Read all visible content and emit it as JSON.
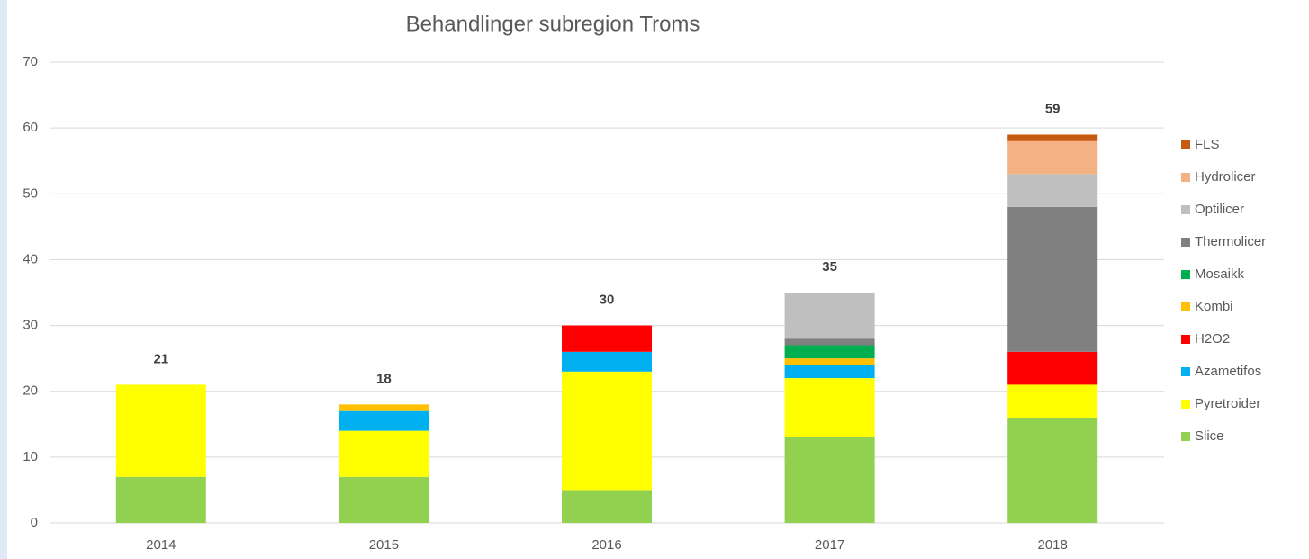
{
  "chart_data": {
    "type": "stacked_bar",
    "title": "Behandlinger subregion Troms",
    "categories": [
      "2014",
      "2015",
      "2016",
      "2017",
      "2018"
    ],
    "series": [
      {
        "name": "Slice",
        "color": "#92d050",
        "values": [
          7,
          7,
          5,
          13,
          16
        ]
      },
      {
        "name": "Pyretroider",
        "color": "#ffff00",
        "values": [
          14,
          7,
          18,
          9,
          5
        ]
      },
      {
        "name": "Azametifos",
        "color": "#00b0f0",
        "values": [
          0,
          3,
          3,
          2,
          0
        ]
      },
      {
        "name": "H2O2",
        "color": "#ff0000",
        "values": [
          0,
          0,
          4,
          0,
          5
        ]
      },
      {
        "name": "Kombi",
        "color": "#ffc000",
        "values": [
          0,
          1,
          0,
          1,
          0
        ]
      },
      {
        "name": "Mosaikk",
        "color": "#00b050",
        "values": [
          0,
          0,
          0,
          2,
          0
        ]
      },
      {
        "name": "Thermolicer",
        "color": "#808080",
        "values": [
          0,
          0,
          0,
          1,
          22
        ]
      },
      {
        "name": "Optilicer",
        "color": "#bfbfbf",
        "values": [
          0,
          0,
          0,
          7,
          5
        ]
      },
      {
        "name": "Hydrolicer",
        "color": "#f4b183",
        "values": [
          0,
          0,
          0,
          0,
          5
        ]
      },
      {
        "name": "FLS",
        "color": "#c55a11",
        "values": [
          0,
          0,
          0,
          0,
          1
        ]
      }
    ],
    "totals": [
      21,
      18,
      30,
      35,
      59
    ],
    "ylim": [
      0,
      70
    ],
    "yticks": [
      0,
      10,
      20,
      30,
      40,
      50,
      60,
      70
    ],
    "grid": true,
    "legend": "right"
  }
}
